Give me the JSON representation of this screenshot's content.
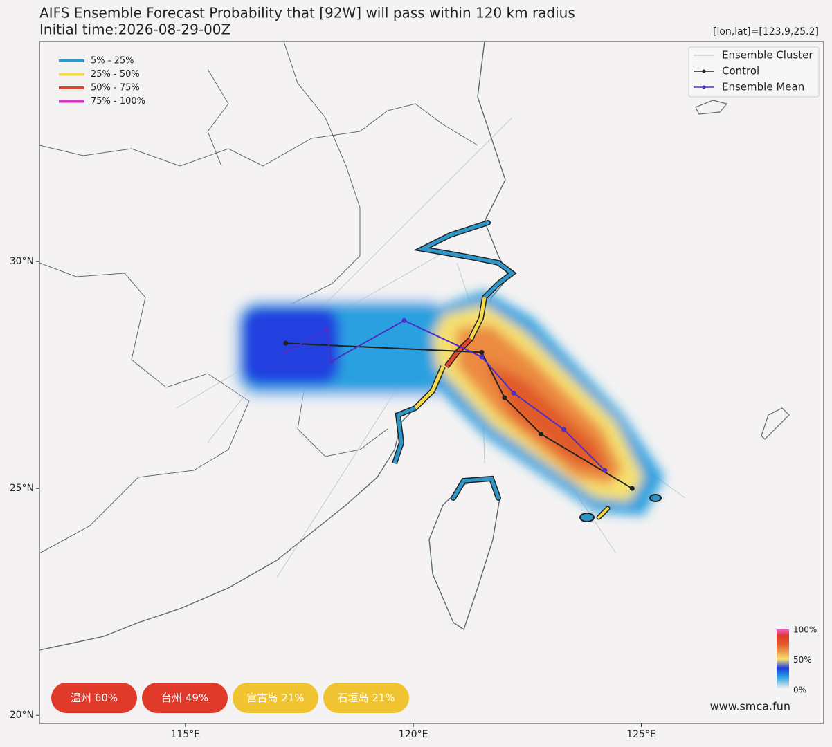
{
  "chart_data": {
    "type": "track-map",
    "title": "AIFS Ensemble Forecast Probability that [92W] will pass within 120 km radius",
    "subtitle": "Initial time:2026-08-29-00Z",
    "cursor_label": "[lon,lat]=[123.9,25.2]",
    "xlim": [
      111.8,
      129.0
    ],
    "ylim": [
      19.82,
      34.85
    ],
    "xticks": [
      {
        "value": 115,
        "label": "115°E"
      },
      {
        "value": 120,
        "label": "120°E"
      },
      {
        "value": 125,
        "label": "125°E"
      }
    ],
    "yticks": [
      {
        "value": 20,
        "label": "20°N"
      },
      {
        "value": 25,
        "label": "25°N"
      },
      {
        "value": 30,
        "label": "30°N"
      }
    ],
    "grid": true,
    "probability_legend": [
      {
        "label": "5% - 25%",
        "color": "#2f97c8"
      },
      {
        "label": "25% - 50%",
        "color": "#f2d94a"
      },
      {
        "label": "50% - 75%",
        "color": "#e0462a"
      },
      {
        "label": "75% - 100%",
        "color": "#e02ed0"
      }
    ],
    "ensemble_cluster": {
      "name": "Ensemble Cluster",
      "color": "#bdbdbd"
    },
    "tracks": [
      {
        "name": "Control",
        "color": "#222222",
        "lon": [
          117.2,
          121.5,
          122.0,
          122.8,
          124.8
        ],
        "lat": [
          28.2,
          28.0,
          27.0,
          26.2,
          25.0
        ]
      },
      {
        "name": "Ensemble Mean",
        "color": "#4a2fc8",
        "lon": [
          117.2,
          118.1,
          118.2,
          119.8,
          121.5,
          122.2,
          123.3,
          124.2
        ],
        "lat": [
          28.0,
          28.5,
          27.8,
          28.7,
          27.9,
          27.1,
          26.3,
          25.4
        ]
      }
    ],
    "colorbar_labels": [
      "100%",
      "50%",
      "0%"
    ],
    "places": [
      {
        "name": "温州",
        "value": 60,
        "value_label": "60%",
        "color": "#e03a2a"
      },
      {
        "name": "台州",
        "value": 49,
        "value_label": "49%",
        "color": "#e03a2a"
      },
      {
        "name": "宫古岛",
        "value": 21,
        "value_label": "21%",
        "color": "#f0c430"
      },
      {
        "name": "石垣岛",
        "value": 21,
        "value_label": "21%",
        "color": "#f0c430"
      }
    ],
    "watermark": "www.smca.fun"
  }
}
